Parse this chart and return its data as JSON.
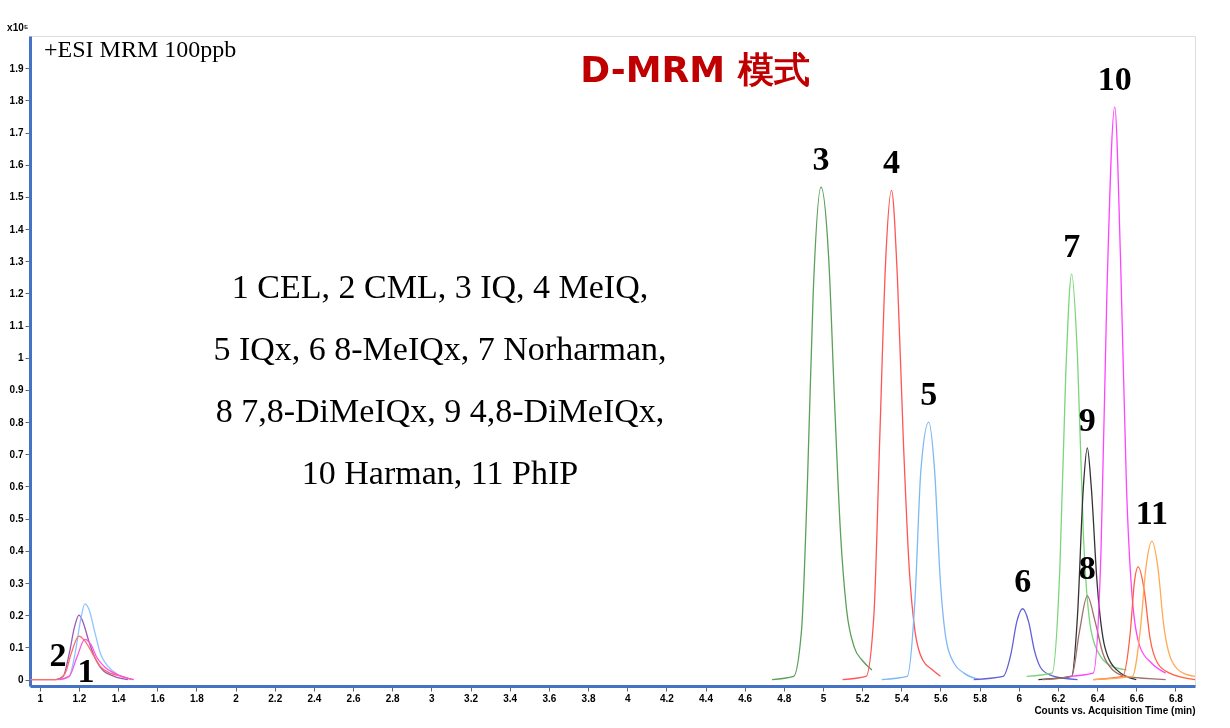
{
  "chart_data": {
    "type": "line",
    "title": "D-MRM 模式",
    "xlabel": "Counts vs. Acquisition Time (min)",
    "ylabel": "x10⁵",
    "xlim": [
      0.95,
      6.9
    ],
    "ylim": [
      -0.02,
      2.0
    ],
    "xticks": [
      1,
      1.2,
      1.4,
      1.6,
      1.8,
      2,
      2.2,
      2.4,
      2.6,
      2.8,
      3,
      3.2,
      3.4,
      3.6,
      3.8,
      4,
      4.2,
      4.4,
      4.6,
      4.8,
      5,
      5.2,
      5.4,
      5.6,
      5.8,
      6,
      6.2,
      6.4,
      6.6,
      6.8
    ],
    "yticks": [
      0,
      0.1,
      0.2,
      0.3,
      0.4,
      0.5,
      0.6,
      0.7,
      0.8,
      0.9,
      1,
      1.1,
      1.2,
      1.3,
      1.4,
      1.5,
      1.6,
      1.7,
      1.8,
      1.9
    ],
    "grid": false,
    "marker": "none",
    "line_style": "solid",
    "series": [
      {
        "color": "#9b59b6",
        "x": [
          0.95,
          1.08,
          1.12,
          1.15,
          1.18,
          1.2,
          1.22,
          1.25,
          1.28,
          1.32,
          1.38,
          1.45
        ],
        "values": [
          0,
          0,
          0.01,
          0.08,
          0.17,
          0.2,
          0.18,
          0.12,
          0.07,
          0.03,
          0.01,
          0
        ]
      },
      {
        "color": "#8ec5ff",
        "x": [
          1.1,
          1.15,
          1.18,
          1.21,
          1.23,
          1.25,
          1.28,
          1.31,
          1.35,
          1.4,
          1.48
        ],
        "values": [
          0,
          0.01,
          0.08,
          0.19,
          0.235,
          0.22,
          0.15,
          0.08,
          0.04,
          0.015,
          0
        ]
      },
      {
        "color": "#ff6b6b",
        "x": [
          0.95,
          1.09,
          1.13,
          1.16,
          1.2,
          1.23,
          1.27,
          1.31,
          1.36,
          1.42,
          1.47
        ],
        "values": [
          0,
          0,
          0.02,
          0.08,
          0.135,
          0.12,
          0.08,
          0.04,
          0.02,
          0.01,
          0
        ]
      },
      {
        "color": "#ff55dd",
        "x": [
          1.1,
          1.15,
          1.19,
          1.23,
          1.26,
          1.29,
          1.33,
          1.38,
          1.44,
          1.48
        ],
        "values": [
          0,
          0.01,
          0.07,
          0.125,
          0.11,
          0.07,
          0.04,
          0.02,
          0.005,
          0
        ]
      },
      {
        "color": "#5aa05a",
        "x": [
          4.74,
          4.85,
          4.89,
          4.92,
          4.95,
          4.99,
          5.03,
          5.06,
          5.09,
          5.12,
          5.16,
          5.2,
          5.25
        ],
        "values": [
          0,
          0.01,
          0.15,
          0.6,
          1.2,
          1.53,
          1.3,
          0.85,
          0.45,
          0.22,
          0.1,
          0.06,
          0.03
        ]
      },
      {
        "color": "#ff5555",
        "x": [
          5.1,
          5.22,
          5.26,
          5.29,
          5.32,
          5.35,
          5.38,
          5.41,
          5.44,
          5.47,
          5.51,
          5.56,
          5.6
        ],
        "values": [
          0,
          0.01,
          0.2,
          0.75,
          1.3,
          1.52,
          1.25,
          0.75,
          0.35,
          0.15,
          0.06,
          0.03,
          0.01
        ]
      },
      {
        "color": "#7fb8f5",
        "x": [
          5.3,
          5.43,
          5.47,
          5.5,
          5.54,
          5.57,
          5.6,
          5.63,
          5.67,
          5.72,
          5.8
        ],
        "values": [
          0,
          0.01,
          0.25,
          0.65,
          0.8,
          0.65,
          0.3,
          0.12,
          0.05,
          0.02,
          0
        ]
      },
      {
        "color": "#6060d8",
        "x": [
          5.77,
          5.92,
          5.96,
          5.99,
          6.02,
          6.05,
          6.08,
          6.12,
          6.18,
          6.3
        ],
        "values": [
          0,
          0.01,
          0.08,
          0.18,
          0.22,
          0.18,
          0.09,
          0.03,
          0.01,
          0
        ]
      },
      {
        "color": "#7ad67a",
        "x": [
          6.04,
          6.17,
          6.21,
          6.24,
          6.27,
          6.3,
          6.33,
          6.37,
          6.42,
          6.48,
          6.55
        ],
        "values": [
          0.01,
          0.02,
          0.35,
          0.95,
          1.26,
          1.0,
          0.45,
          0.15,
          0.07,
          0.04,
          0.03
        ]
      },
      {
        "color": "#333333",
        "x": [
          6.1,
          6.27,
          6.3,
          6.33,
          6.35,
          6.37,
          6.4,
          6.44,
          6.5,
          6.6
        ],
        "values": [
          0,
          0.01,
          0.2,
          0.6,
          0.72,
          0.6,
          0.3,
          0.1,
          0.03,
          0
        ]
      },
      {
        "color": "#a0706a",
        "x": [
          6.12,
          6.27,
          6.31,
          6.35,
          6.39,
          6.43,
          6.48,
          6.55,
          6.75
        ],
        "values": [
          0,
          0.01,
          0.15,
          0.26,
          0.18,
          0.08,
          0.03,
          0.01,
          0
        ]
      },
      {
        "color": "#ff44ff",
        "x": [
          6.26,
          6.38,
          6.42,
          6.45,
          6.49,
          6.52,
          6.55,
          6.58,
          6.62,
          6.68,
          6.75
        ],
        "values": [
          0.01,
          0.02,
          0.4,
          1.2,
          1.78,
          1.3,
          0.6,
          0.25,
          0.1,
          0.05,
          0.02
        ]
      },
      {
        "color": "#ff6040",
        "x": [
          6.38,
          6.53,
          6.57,
          6.59,
          6.61,
          6.64,
          6.67,
          6.71,
          6.77,
          6.9
        ],
        "values": [
          0,
          0.01,
          0.15,
          0.3,
          0.35,
          0.28,
          0.13,
          0.05,
          0.02,
          0
        ]
      },
      {
        "color": "#ffaa55",
        "x": [
          6.38,
          6.58,
          6.62,
          6.65,
          6.68,
          6.71,
          6.74,
          6.78,
          6.84,
          6.9
        ],
        "values": [
          0,
          0.01,
          0.15,
          0.35,
          0.43,
          0.35,
          0.17,
          0.06,
          0.02,
          0.01
        ]
      }
    ],
    "annotations": [
      "+ESI MRM 100ppb",
      "1 CEL, 2 CML, 3 IQ, 4 MeIQ,",
      "5 IQx, 6 8-MeIQx, 7 Norharman,",
      "8 7,8-DiMeIQx, 9 4,8-DiMeIQx,",
      "10 Harman, 11 PhIP",
      "1",
      "2",
      {
        "text": "3",
        "x": 4.99,
        "y": 1.53
      },
      {
        "text": "4",
        "x": 5.35,
        "y": 1.52
      },
      {
        "text": "5",
        "x": 5.54,
        "y": 0.8
      },
      {
        "text": "6",
        "x": 6.02,
        "y": 0.22
      },
      {
        "text": "7",
        "x": 6.27,
        "y": 1.26
      },
      {
        "text": "8",
        "x": 6.35,
        "y": 0.26
      },
      {
        "text": "9",
        "x": 6.35,
        "y": 0.72
      },
      {
        "text": "10",
        "x": 6.49,
        "y": 1.78
      },
      {
        "text": "11",
        "x": 6.68,
        "y": 0.43
      }
    ]
  }
}
